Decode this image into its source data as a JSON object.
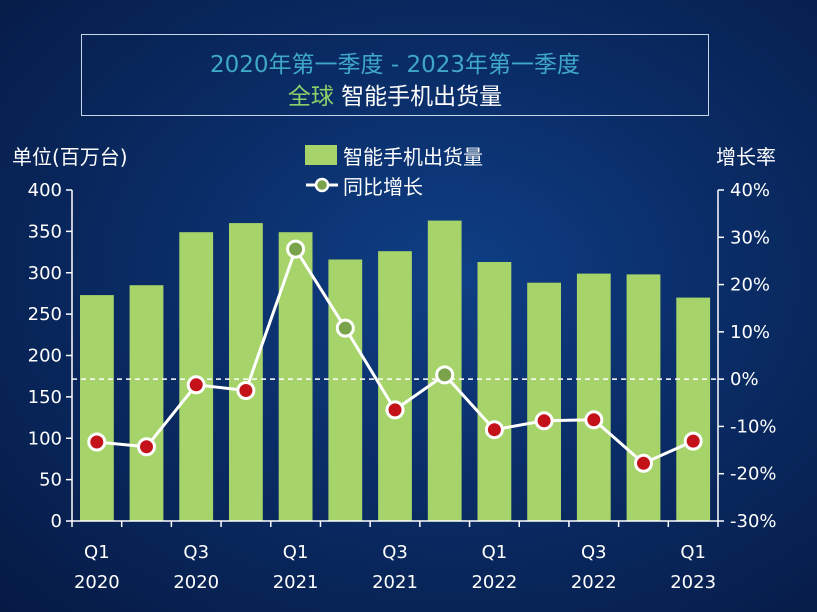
{
  "chart_data": {
    "type": "bar+line",
    "title_line1": "2020年第一季度 - 2023年第一季度",
    "title_line2_prefix": "全球",
    "title_line2_rest": " 智能手机出货量",
    "ylabel_left": "单位(百万台)",
    "ylabel_right": "增长率",
    "categories": [
      "Q1 2020",
      "Q2 2020",
      "Q3 2020",
      "Q4 2020",
      "Q1 2021",
      "Q2 2021",
      "Q3 2021",
      "Q4 2021",
      "Q1 2022",
      "Q2 2022",
      "Q3 2022",
      "Q4 2022",
      "Q1 2023"
    ],
    "x_tick_labels": [
      {
        "index": 0,
        "quarter": "Q1",
        "year": "2020"
      },
      {
        "index": 2,
        "quarter": "Q3",
        "year": "2020"
      },
      {
        "index": 4,
        "quarter": "Q1",
        "year": "2021"
      },
      {
        "index": 6,
        "quarter": "Q3",
        "year": "2021"
      },
      {
        "index": 8,
        "quarter": "Q1",
        "year": "2022"
      },
      {
        "index": 10,
        "quarter": "Q3",
        "year": "2022"
      },
      {
        "index": 12,
        "quarter": "Q1",
        "year": "2023"
      }
    ],
    "series": [
      {
        "name": "智能手机出货量",
        "axis": "left",
        "type": "bar",
        "color": "#a6d46a",
        "values": [
          273,
          285,
          349,
          360,
          349,
          316,
          326,
          363,
          313,
          288,
          299,
          298,
          270
        ]
      },
      {
        "name": "同比增长",
        "axis": "right",
        "type": "line",
        "color": "#ffffff",
        "values": [
          -13.3,
          -14.3,
          -1.2,
          -2.4,
          27.5,
          10.8,
          -6.5,
          0.9,
          -10.7,
          -8.8,
          -8.6,
          -17.8,
          -13.1
        ]
      }
    ],
    "positive_marker_color": "#7aa24a",
    "negative_marker_color": "#c4121a",
    "ylim_left": [
      0,
      400
    ],
    "yticks_left": [
      "0",
      "50",
      "100",
      "150",
      "200",
      "250",
      "300",
      "350",
      "400"
    ],
    "ylim_right": [
      -30,
      40
    ],
    "yticks_right": [
      "-30%",
      "-20%",
      "-10%",
      "0%",
      "10%",
      "20%",
      "30%",
      "40%"
    ],
    "zero_line": "dashed",
    "legend": "top-center"
  }
}
